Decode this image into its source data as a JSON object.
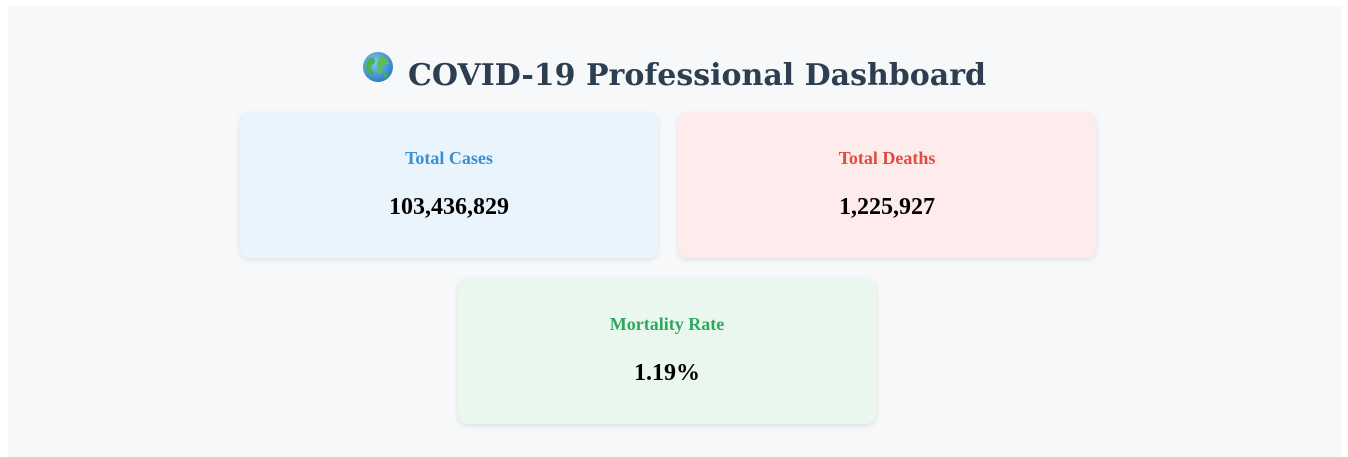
{
  "header": {
    "icon": "globe-icon",
    "title": "COVID-19 Professional Dashboard"
  },
  "stats": {
    "total_cases": {
      "label": "Total Cases",
      "value": "103,436,829",
      "accent": "#3a8fd1",
      "background": "#eaf4fc"
    },
    "total_deaths": {
      "label": "Total Deaths",
      "value": "1,225,927",
      "accent": "#e04b3a",
      "background": "#fdeceb"
    },
    "mortality_rate": {
      "label": "Mortality Rate",
      "value": "1.19%",
      "accent": "#2ea860",
      "background": "#e9f7ee"
    }
  }
}
